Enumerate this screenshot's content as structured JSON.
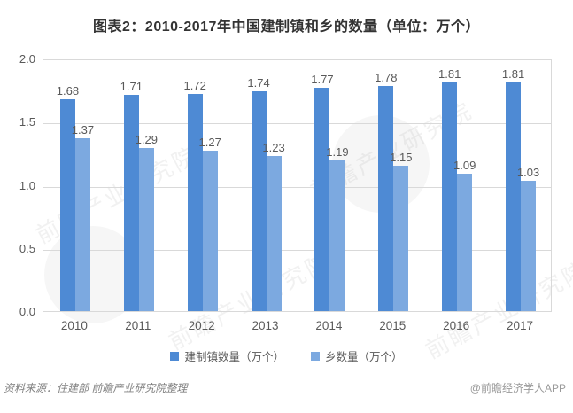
{
  "chart_data": {
    "type": "bar",
    "title": "图表2：2010-2017年中国建制镇和乡的数量（单位：万个）",
    "categories": [
      "2010",
      "2011",
      "2012",
      "2013",
      "2014",
      "2015",
      "2016",
      "2017"
    ],
    "series": [
      {
        "name": "建制镇数量（万个）",
        "color": "#4E8AD4",
        "values": [
          1.68,
          1.71,
          1.72,
          1.74,
          1.77,
          1.78,
          1.81,
          1.81
        ]
      },
      {
        "name": "乡数量（万个）",
        "color": "#7CA9E0",
        "values": [
          1.37,
          1.29,
          1.27,
          1.23,
          1.19,
          1.15,
          1.09,
          1.03
        ]
      }
    ],
    "xlabel": "",
    "ylabel": "",
    "ylim": [
      0,
      2.0
    ],
    "yticks": [
      "2.0",
      "1.5",
      "1.0",
      "0.5",
      "0.0"
    ],
    "grid": true,
    "value_labels": true,
    "legend_position": "bottom",
    "gridline_color": "#d9d9d9",
    "label_color": "#595959"
  },
  "watermark": {
    "text": "前瞻产业研究院"
  },
  "footer": {
    "source": "资料来源：住建部  前瞻产业研究院整理",
    "credit": "@前瞻经济学人APP"
  }
}
